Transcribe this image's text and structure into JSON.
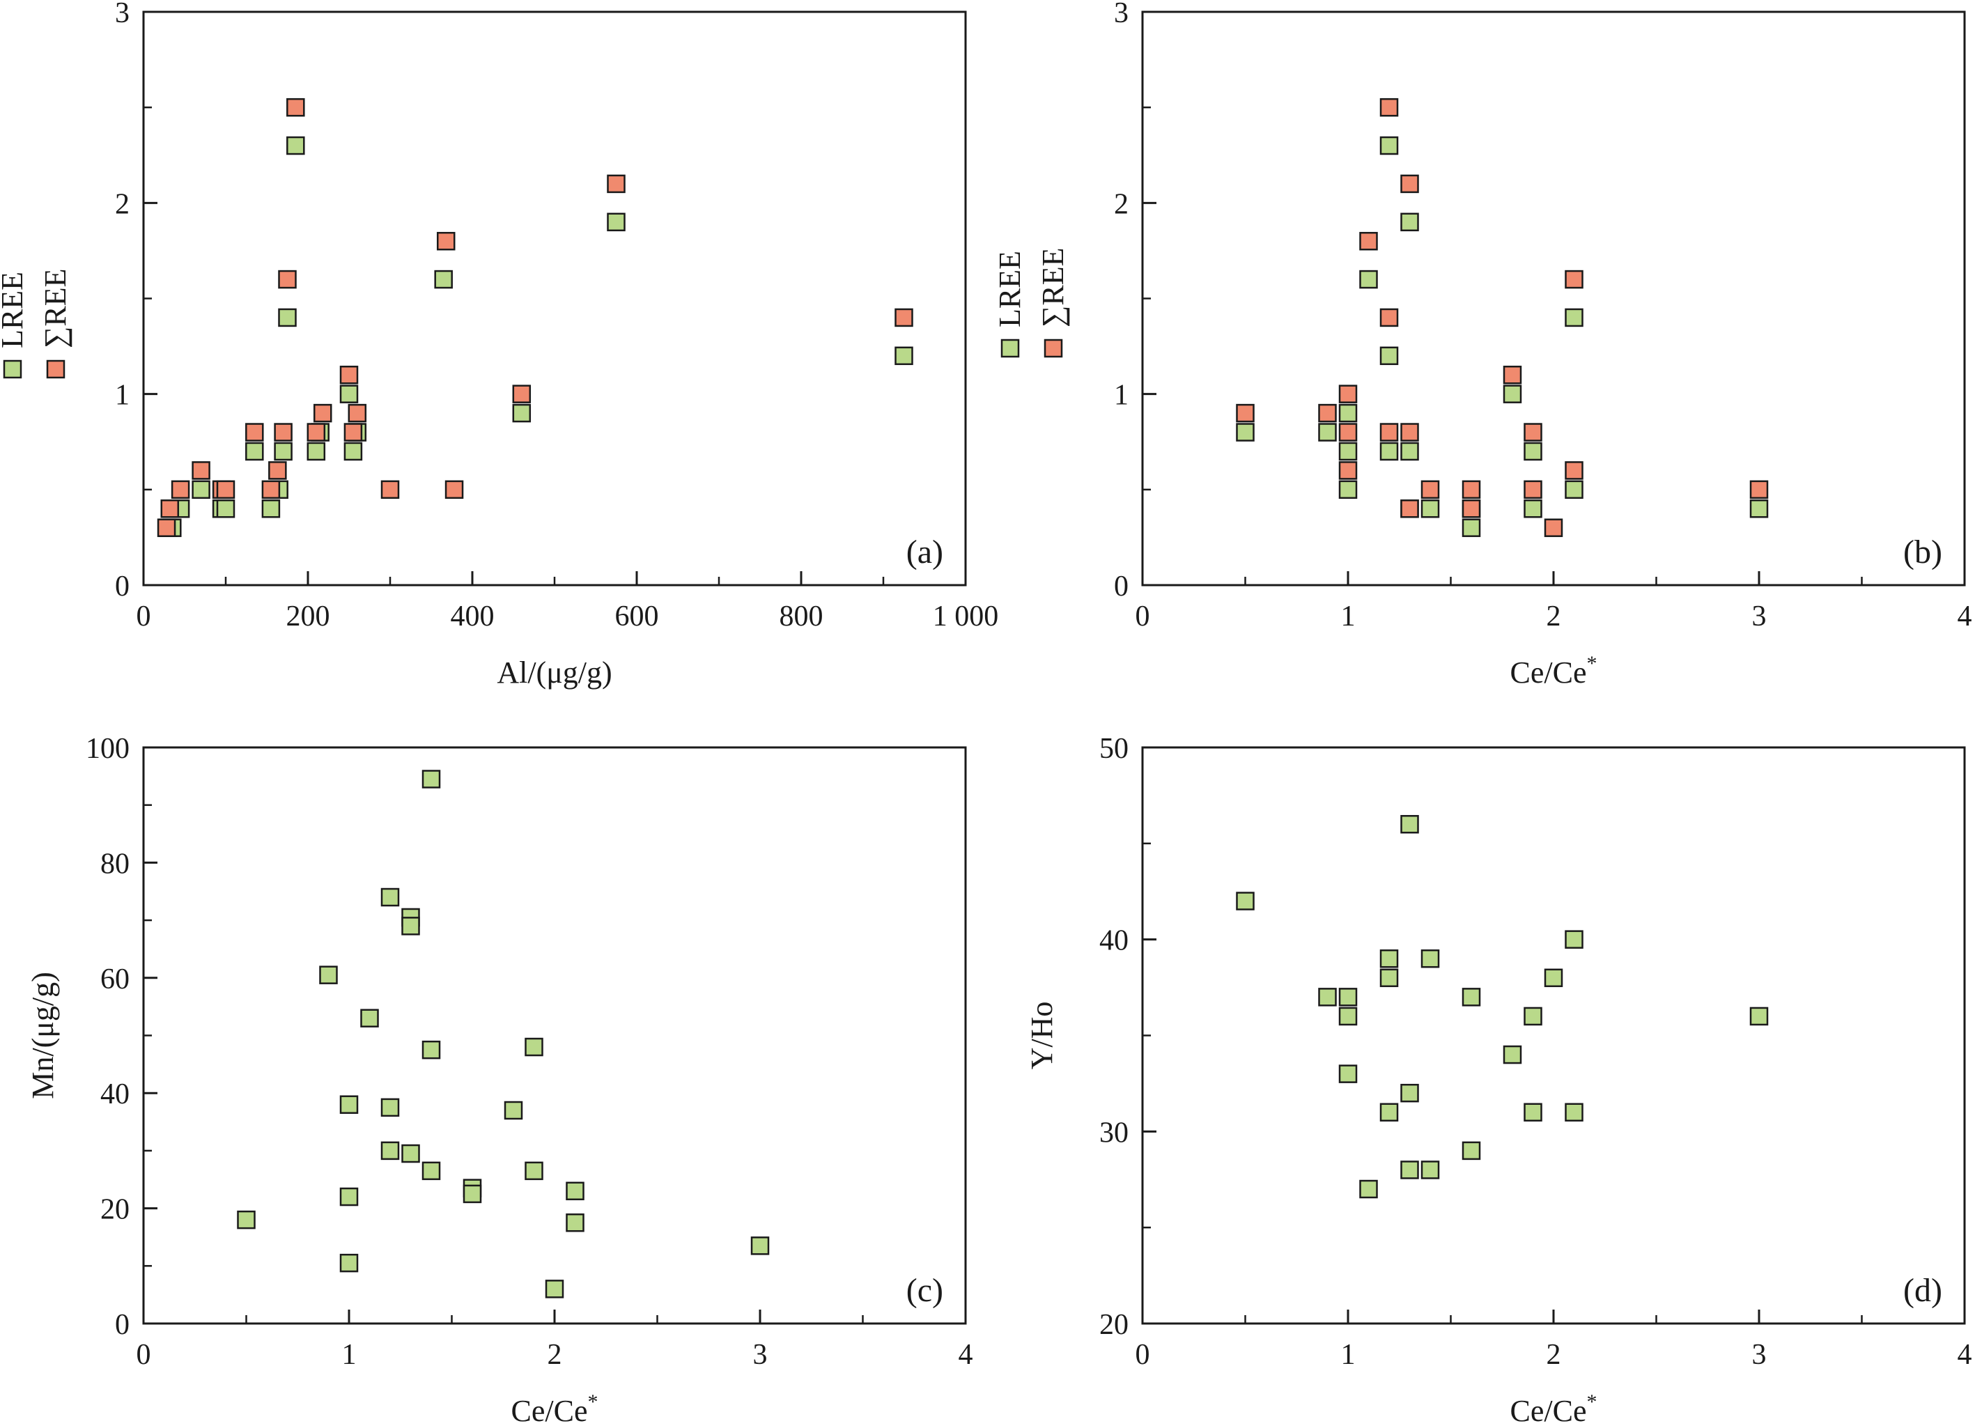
{
  "colors": {
    "lree": "#b9d98a",
    "sum_ree": "#f08a6e",
    "axis": "#1a1a1a"
  },
  "chart_data": [
    {
      "id": "a",
      "type": "scatter",
      "panel_label": "(a)",
      "xlabel": "Al/(μg/g)",
      "ylabel": "",
      "xlim": [
        0,
        1000
      ],
      "ylim": [
        0,
        3
      ],
      "x_ticks": [
        0,
        200,
        400,
        600,
        800,
        1000
      ],
      "x_tick_labels": [
        "0",
        "200",
        "400",
        "600",
        "800",
        "1 000"
      ],
      "y_ticks": [
        0,
        1,
        2,
        3
      ],
      "y_tick_labels": [
        "0",
        "1",
        "2",
        "3"
      ],
      "legend": {
        "placement": "left-outside",
        "entries": [
          "LREE",
          "∑REE"
        ]
      },
      "series": [
        {
          "name": "LREE",
          "color_key": "lree",
          "points": [
            [
              30,
              0.3
            ],
            [
              35,
              0.3
            ],
            [
              45,
              0.4
            ],
            [
              70,
              0.5
            ],
            [
              95,
              0.4
            ],
            [
              100,
              0.4
            ],
            [
              135,
              0.7
            ],
            [
              155,
              0.4
            ],
            [
              165,
              0.5
            ],
            [
              170,
              0.7
            ],
            [
              175,
              1.4
            ],
            [
              185,
              2.3
            ],
            [
              210,
              0.7
            ],
            [
              215,
              0.8
            ],
            [
              250,
              1.0
            ],
            [
              255,
              0.7
            ],
            [
              260,
              0.8
            ],
            [
              365,
              1.6
            ],
            [
              460,
              0.9
            ],
            [
              575,
              1.9
            ],
            [
              925,
              1.2
            ]
          ]
        },
        {
          "name": "∑REE",
          "color_key": "sum_ree",
          "points": [
            [
              28,
              0.3
            ],
            [
              32,
              0.4
            ],
            [
              45,
              0.5
            ],
            [
              70,
              0.6
            ],
            [
              95,
              0.5
            ],
            [
              100,
              0.5
            ],
            [
              135,
              0.8
            ],
            [
              155,
              0.5
            ],
            [
              163,
              0.6
            ],
            [
              170,
              0.8
            ],
            [
              175,
              1.6
            ],
            [
              185,
              2.5
            ],
            [
              210,
              0.8
            ],
            [
              218,
              0.9
            ],
            [
              250,
              1.1
            ],
            [
              255,
              0.8
            ],
            [
              260,
              0.9
            ],
            [
              300,
              0.5
            ],
            [
              368,
              1.8
            ],
            [
              378,
              0.5
            ],
            [
              460,
              1.0
            ],
            [
              575,
              2.1
            ],
            [
              925,
              1.4
            ]
          ]
        }
      ]
    },
    {
      "id": "b",
      "type": "scatter",
      "panel_label": "(b)",
      "xlabel": "Ce/Ce",
      "xlabel_superscript": "*",
      "ylabel": "",
      "xlim": [
        0,
        4
      ],
      "ylim": [
        0,
        3
      ],
      "x_ticks": [
        0,
        1,
        2,
        3,
        4
      ],
      "x_tick_labels": [
        "0",
        "1",
        "2",
        "3",
        "4"
      ],
      "y_ticks": [
        0,
        1,
        2,
        3
      ],
      "y_tick_labels": [
        "0",
        "1",
        "2",
        "3"
      ],
      "legend": {
        "placement": "left-inside",
        "entries": [
          "LREE",
          "∑REE"
        ]
      },
      "series": [
        {
          "name": "LREE",
          "color_key": "lree",
          "points": [
            [
              0.5,
              0.8
            ],
            [
              0.9,
              0.8
            ],
            [
              1.0,
              0.9
            ],
            [
              1.0,
              0.7
            ],
            [
              1.0,
              0.5
            ],
            [
              1.1,
              1.6
            ],
            [
              1.2,
              2.3
            ],
            [
              1.2,
              1.2
            ],
            [
              1.2,
              0.7
            ],
            [
              1.3,
              1.9
            ],
            [
              1.3,
              0.7
            ],
            [
              1.3,
              0.4
            ],
            [
              1.4,
              0.4
            ],
            [
              1.6,
              0.4
            ],
            [
              1.6,
              0.3
            ],
            [
              1.8,
              1.0
            ],
            [
              1.9,
              0.7
            ],
            [
              1.9,
              0.4
            ],
            [
              2.1,
              1.4
            ],
            [
              2.1,
              0.5
            ],
            [
              3.0,
              0.4
            ]
          ]
        },
        {
          "name": "∑REE",
          "color_key": "sum_ree",
          "points": [
            [
              0.5,
              0.9
            ],
            [
              0.9,
              0.9
            ],
            [
              1.0,
              1.0
            ],
            [
              1.0,
              0.8
            ],
            [
              1.0,
              0.6
            ],
            [
              1.1,
              1.8
            ],
            [
              1.2,
              2.5
            ],
            [
              1.2,
              1.4
            ],
            [
              1.2,
              0.8
            ],
            [
              1.3,
              2.1
            ],
            [
              1.3,
              0.8
            ],
            [
              1.3,
              0.4
            ],
            [
              1.4,
              0.5
            ],
            [
              1.6,
              0.5
            ],
            [
              1.6,
              0.4
            ],
            [
              1.8,
              1.1
            ],
            [
              1.9,
              0.8
            ],
            [
              1.9,
              0.5
            ],
            [
              2.0,
              0.3
            ],
            [
              2.1,
              1.6
            ],
            [
              2.1,
              0.6
            ],
            [
              3.0,
              0.5
            ]
          ]
        }
      ]
    },
    {
      "id": "c",
      "type": "scatter",
      "panel_label": "(c)",
      "xlabel": "Ce/Ce",
      "xlabel_superscript": "*",
      "ylabel": "Mn/(μg/g)",
      "xlim": [
        0,
        4
      ],
      "ylim": [
        0,
        100
      ],
      "x_ticks": [
        0,
        1,
        2,
        3,
        4
      ],
      "x_tick_labels": [
        "0",
        "1",
        "2",
        "3",
        "4"
      ],
      "y_ticks": [
        0,
        20,
        40,
        60,
        80,
        100
      ],
      "y_tick_labels": [
        "0",
        "20",
        "40",
        "60",
        "80",
        "100"
      ],
      "series": [
        {
          "name": "",
          "color_key": "lree",
          "points": [
            [
              0.5,
              18
            ],
            [
              0.9,
              60.5
            ],
            [
              1.0,
              38
            ],
            [
              1.0,
              22
            ],
            [
              1.0,
              10.5
            ],
            [
              1.1,
              53
            ],
            [
              1.2,
              74
            ],
            [
              1.2,
              37.5
            ],
            [
              1.2,
              30
            ],
            [
              1.3,
              70.5
            ],
            [
              1.3,
              69
            ],
            [
              1.3,
              29.5
            ],
            [
              1.4,
              94.5
            ],
            [
              1.4,
              47.5
            ],
            [
              1.4,
              26.5
            ],
            [
              1.6,
              23.5
            ],
            [
              1.6,
              22.5
            ],
            [
              1.8,
              37
            ],
            [
              1.9,
              48
            ],
            [
              1.9,
              26.5
            ],
            [
              2.0,
              6
            ],
            [
              2.1,
              23
            ],
            [
              2.1,
              17.5
            ],
            [
              3.0,
              13.5
            ]
          ]
        }
      ]
    },
    {
      "id": "d",
      "type": "scatter",
      "panel_label": "(d)",
      "xlabel": "Ce/Ce",
      "xlabel_superscript": "*",
      "ylabel": "Y/Ho",
      "xlim": [
        0,
        4
      ],
      "ylim": [
        20,
        50
      ],
      "x_ticks": [
        0,
        1,
        2,
        3,
        4
      ],
      "x_tick_labels": [
        "0",
        "1",
        "2",
        "3",
        "4"
      ],
      "y_ticks": [
        20,
        30,
        40,
        50
      ],
      "y_tick_labels": [
        "20",
        "30",
        "40",
        "50"
      ],
      "series": [
        {
          "name": "",
          "color_key": "lree",
          "points": [
            [
              0.5,
              42
            ],
            [
              0.9,
              37
            ],
            [
              1.0,
              37
            ],
            [
              1.0,
              36
            ],
            [
              1.0,
              33
            ],
            [
              1.1,
              27
            ],
            [
              1.2,
              39
            ],
            [
              1.2,
              38
            ],
            [
              1.2,
              31
            ],
            [
              1.3,
              46
            ],
            [
              1.3,
              32
            ],
            [
              1.3,
              28
            ],
            [
              1.4,
              39
            ],
            [
              1.4,
              28
            ],
            [
              1.6,
              37
            ],
            [
              1.6,
              29
            ],
            [
              1.8,
              34
            ],
            [
              1.9,
              36
            ],
            [
              1.9,
              31
            ],
            [
              2.0,
              38
            ],
            [
              2.1,
              40
            ],
            [
              2.1,
              31
            ],
            [
              3.0,
              36
            ]
          ]
        }
      ]
    }
  ]
}
